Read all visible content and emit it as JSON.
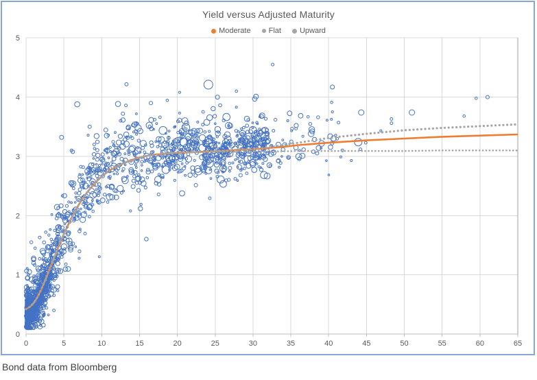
{
  "caption": "Bond data from Bloomberg",
  "chart_data": {
    "type": "scatter",
    "title": "Yield versus Adjusted Maturity",
    "xlabel": "",
    "ylabel": "",
    "xlim": [
      0,
      65
    ],
    "ylim": [
      0,
      5
    ],
    "x_ticks": [
      0,
      5,
      10,
      15,
      20,
      25,
      30,
      35,
      40,
      45,
      50,
      55,
      60,
      65
    ],
    "y_ticks": [
      0,
      1,
      2,
      3,
      4,
      5
    ],
    "grid": true,
    "legend_position": "top-center",
    "colors": {
      "scatter": "#4472c4",
      "moderate": "#ed7d31",
      "flat": "#a5a5a5",
      "upward": "#a5a5a5",
      "gridline": "#d9d9d9",
      "axis": "#bfbfbf",
      "right_border": "#a0a0a0",
      "tick_label": "#595959",
      "title": "#595959",
      "frame_border": "#87a7d0"
    },
    "series": [
      {
        "name": "Moderate",
        "type": "line",
        "style": "solid",
        "color": "#ed7d31",
        "width": 2.6,
        "points": [
          [
            0,
            0.42
          ],
          [
            0.5,
            0.46
          ],
          [
            1,
            0.52
          ],
          [
            1.5,
            0.62
          ],
          [
            2,
            0.75
          ],
          [
            2.5,
            0.9
          ],
          [
            3,
            1.06
          ],
          [
            3.5,
            1.22
          ],
          [
            4,
            1.38
          ],
          [
            4.5,
            1.54
          ],
          [
            5,
            1.69
          ],
          [
            5.5,
            1.83
          ],
          [
            6,
            1.96
          ],
          [
            6.5,
            2.08
          ],
          [
            7,
            2.19
          ],
          [
            7.5,
            2.29
          ],
          [
            8,
            2.38
          ],
          [
            8.5,
            2.46
          ],
          [
            9,
            2.53
          ],
          [
            9.5,
            2.6
          ],
          [
            10,
            2.66
          ],
          [
            11,
            2.76
          ],
          [
            12,
            2.83
          ],
          [
            13,
            2.89
          ],
          [
            14,
            2.94
          ],
          [
            15,
            2.98
          ],
          [
            16,
            3.01
          ],
          [
            17,
            3.03
          ],
          [
            18,
            3.04
          ],
          [
            19,
            3.05
          ],
          [
            20,
            3.06
          ],
          [
            22,
            3.07
          ],
          [
            24,
            3.08
          ],
          [
            26,
            3.09
          ],
          [
            28,
            3.11
          ],
          [
            30,
            3.12
          ],
          [
            32,
            3.14
          ],
          [
            34,
            3.16
          ],
          [
            36,
            3.19
          ],
          [
            38,
            3.21
          ],
          [
            40,
            3.23
          ],
          [
            45,
            3.27
          ],
          [
            50,
            3.3
          ],
          [
            55,
            3.33
          ],
          [
            60,
            3.35
          ],
          [
            65,
            3.37
          ]
        ]
      },
      {
        "name": "Flat",
        "type": "line",
        "style": "dotted",
        "color": "#a5a5a5",
        "width": 2.6,
        "gap": 4.8,
        "points": [
          [
            0,
            0.42
          ],
          [
            0.5,
            0.46
          ],
          [
            1,
            0.52
          ],
          [
            1.5,
            0.62
          ],
          [
            2,
            0.75
          ],
          [
            2.5,
            0.9
          ],
          [
            3,
            1.06
          ],
          [
            3.5,
            1.22
          ],
          [
            4,
            1.38
          ],
          [
            4.5,
            1.54
          ],
          [
            5,
            1.69
          ],
          [
            5.5,
            1.83
          ],
          [
            6,
            1.96
          ],
          [
            6.5,
            2.08
          ],
          [
            7,
            2.19
          ],
          [
            7.5,
            2.29
          ],
          [
            8,
            2.38
          ],
          [
            8.5,
            2.46
          ],
          [
            9,
            2.53
          ],
          [
            9.5,
            2.6
          ],
          [
            10,
            2.66
          ],
          [
            11,
            2.76
          ],
          [
            12,
            2.83
          ],
          [
            13,
            2.89
          ],
          [
            14,
            2.94
          ],
          [
            15,
            2.98
          ],
          [
            16,
            3.01
          ],
          [
            17,
            3.03
          ],
          [
            18,
            3.04
          ],
          [
            19,
            3.05
          ],
          [
            20,
            3.06
          ],
          [
            22,
            3.07
          ],
          [
            24,
            3.08
          ],
          [
            28,
            3.08
          ],
          [
            32,
            3.08
          ],
          [
            36,
            3.09
          ],
          [
            40,
            3.09
          ],
          [
            45,
            3.09
          ],
          [
            50,
            3.09
          ],
          [
            55,
            3.1
          ],
          [
            60,
            3.1
          ],
          [
            65,
            3.1
          ]
        ]
      },
      {
        "name": "Upward",
        "type": "line",
        "style": "dotted",
        "color": "#a5a5a5",
        "width": 3.2,
        "gap": 5.6,
        "points": [
          [
            0,
            0.42
          ],
          [
            0.5,
            0.46
          ],
          [
            1,
            0.52
          ],
          [
            1.5,
            0.62
          ],
          [
            2,
            0.75
          ],
          [
            2.5,
            0.9
          ],
          [
            3,
            1.06
          ],
          [
            3.5,
            1.22
          ],
          [
            4,
            1.38
          ],
          [
            4.5,
            1.54
          ],
          [
            5,
            1.69
          ],
          [
            5.5,
            1.83
          ],
          [
            6,
            1.96
          ],
          [
            6.5,
            2.08
          ],
          [
            7,
            2.19
          ],
          [
            7.5,
            2.29
          ],
          [
            8,
            2.38
          ],
          [
            8.5,
            2.46
          ],
          [
            9,
            2.53
          ],
          [
            9.5,
            2.6
          ],
          [
            10,
            2.66
          ],
          [
            11,
            2.76
          ],
          [
            12,
            2.83
          ],
          [
            13,
            2.89
          ],
          [
            14,
            2.94
          ],
          [
            15,
            2.98
          ],
          [
            16,
            3.01
          ],
          [
            17,
            3.03
          ],
          [
            18,
            3.04
          ],
          [
            19,
            3.05
          ],
          [
            20,
            3.06
          ],
          [
            22,
            3.07
          ],
          [
            24,
            3.08
          ],
          [
            26,
            3.09
          ],
          [
            28,
            3.11
          ],
          [
            30,
            3.12
          ],
          [
            32,
            3.15
          ],
          [
            34,
            3.19
          ],
          [
            36,
            3.23
          ],
          [
            38,
            3.27
          ],
          [
            40,
            3.31
          ],
          [
            45,
            3.38
          ],
          [
            50,
            3.44
          ],
          [
            55,
            3.48
          ],
          [
            60,
            3.51
          ],
          [
            65,
            3.54
          ]
        ]
      }
    ],
    "scatter": {
      "name": "Bonds",
      "marker": "open-circle",
      "color": "#4472c4",
      "stroke_width": 1,
      "seed": 7,
      "clusters": [
        {
          "count": 650,
          "x_min": 0.05,
          "x_max": 3.4,
          "x_pow": 1.8,
          "y_sigma": 0.14,
          "y_bias": -0.1,
          "y_min": 0.1,
          "r_base": 1.1,
          "r_spread": 1.4,
          "r_pow": 1.0
        },
        {
          "count": 260,
          "x_min": 0.05,
          "x_max": 4.4,
          "x_pow": 1.6,
          "y_sigma": 0.3,
          "y_bias": 0.02,
          "y_min": 0.12,
          "r_base": 1.4,
          "r_spread": 2.4,
          "r_pow": 1.5
        },
        {
          "count": 430,
          "x_min": 2.0,
          "x_max": 18.0,
          "x_pow": 1.2,
          "y_sigma": 0.3,
          "y_bias": 0.0,
          "y_min": 0.15,
          "r_base": 1.3,
          "r_spread": 3.6,
          "r_pow": 2.2
        },
        {
          "count": 55,
          "x_min": 2.0,
          "x_max": 16.0,
          "x_pow": 1.0,
          "y_sigma": 0.62,
          "y_bias": 0.1,
          "y_min": 0.2,
          "r_base": 1.3,
          "r_spread": 2.6,
          "r_pow": 1.5
        },
        {
          "count": 150,
          "x_min": 18.0,
          "x_max": 22.8,
          "x_pow": 1.0,
          "y_sigma": 0.22,
          "y_bias": 0.0,
          "y_min": 1.5,
          "r_base": 1.3,
          "r_spread": 4.6,
          "r_pow": 2.4
        },
        {
          "count": 150,
          "x_min": 23.2,
          "x_max": 27.2,
          "x_pow": 1.0,
          "y_sigma": 0.22,
          "y_bias": 0.0,
          "y_min": 1.5,
          "r_base": 1.3,
          "r_spread": 4.6,
          "r_pow": 2.4
        },
        {
          "count": 160,
          "x_min": 27.6,
          "x_max": 32.0,
          "x_pow": 1.0,
          "y_sigma": 0.22,
          "y_bias": 0.0,
          "y_min": 1.5,
          "r_base": 1.3,
          "r_spread": 4.6,
          "r_pow": 2.4
        },
        {
          "count": 40,
          "x_min": 17.5,
          "x_max": 33.5,
          "x_pow": 1.0,
          "y_sigma": 0.38,
          "y_bias": 0.12,
          "y_min": 1.5,
          "r_base": 1.4,
          "r_spread": 3.0,
          "r_pow": 1.6
        },
        {
          "count": 55,
          "x_min": 32.0,
          "x_max": 41.5,
          "x_pow": 1.0,
          "y_sigma": 0.24,
          "y_bias": 0.02,
          "y_min": 1.8,
          "r_base": 1.3,
          "r_spread": 3.2,
          "r_pow": 2.0
        }
      ],
      "outliers": [
        [
          24.1,
          4.21,
          6.5
        ],
        [
          32.6,
          4.55,
          2.0
        ],
        [
          25.3,
          4.0,
          3.0
        ],
        [
          30.4,
          4.01,
          3.5
        ],
        [
          27.8,
          4.1,
          1.8
        ],
        [
          27.8,
          3.83,
          1.5
        ],
        [
          23.4,
          3.75,
          2.0
        ],
        [
          30.9,
          3.67,
          1.5
        ],
        [
          40.5,
          4.17,
          3.0
        ],
        [
          40.4,
          3.91,
          1.8
        ],
        [
          40.5,
          3.75,
          1.6
        ],
        [
          38.6,
          3.66,
          2.2
        ],
        [
          41.3,
          3.57,
          2.0
        ],
        [
          41.8,
          3.1,
          2.0
        ],
        [
          41.6,
          2.99,
          1.5
        ],
        [
          43.0,
          2.93,
          1.5
        ],
        [
          43.9,
          3.24,
          5.5
        ],
        [
          44.2,
          3.12,
          2.0
        ],
        [
          44.9,
          3.23,
          2.0
        ],
        [
          44.3,
          3.74,
          4.0
        ],
        [
          46.9,
          3.43,
          1.5
        ],
        [
          48.3,
          3.63,
          2.0
        ],
        [
          48.3,
          3.56,
          2.0
        ],
        [
          51.0,
          3.74,
          4.0
        ],
        [
          57.9,
          3.68,
          1.8
        ],
        [
          59.5,
          3.98,
          1.8
        ],
        [
          61.0,
          4.0,
          2.5
        ],
        [
          4.7,
          3.32,
          3.0
        ],
        [
          8.4,
          3.5,
          2.5
        ],
        [
          6.0,
          3.1,
          2.0
        ],
        [
          9.0,
          3.2,
          2.0
        ],
        [
          12.8,
          3.72,
          2.5
        ],
        [
          13.2,
          3.86,
          2.0
        ],
        [
          12.5,
          3.6,
          2.0
        ],
        [
          14.7,
          3.55,
          2.0
        ],
        [
          16.5,
          3.9,
          2.5
        ],
        [
          17.0,
          3.62,
          2.0
        ],
        [
          20.3,
          4.08,
          1.6
        ],
        [
          21.0,
          3.6,
          4.5
        ],
        [
          0.7,
          1.55,
          2.2
        ],
        [
          1.8,
          1.63,
          2.0
        ],
        [
          1.2,
          1.45,
          1.8
        ],
        [
          2.6,
          1.72,
          1.8
        ]
      ]
    }
  }
}
